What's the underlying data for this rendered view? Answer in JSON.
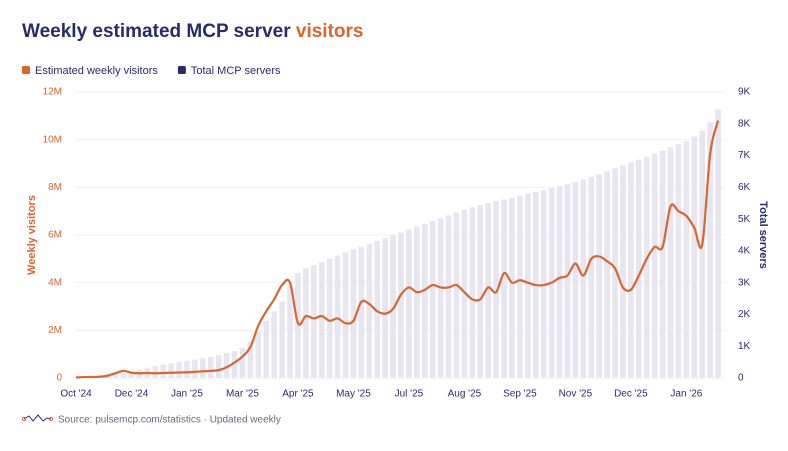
{
  "chart_data": {
    "type": "bar-line",
    "title": "Weekly estimated MCP server",
    "title_highlight": "visitors",
    "source": "Source: pulsemcp.com/statistics · Updated weekly",
    "ylabel": "Weekly visitors",
    "y2label": "Total servers",
    "categories": [
      "Oct '24",
      null,
      null,
      null,
      null,
      null,
      null,
      "Dec '24",
      null,
      null,
      null,
      null,
      null,
      null,
      "Jan '25",
      null,
      null,
      null,
      null,
      null,
      null,
      "Mar '25",
      null,
      null,
      null,
      null,
      null,
      null,
      "Apr '25",
      null,
      null,
      null,
      null,
      null,
      null,
      "May '25",
      null,
      null,
      null,
      null,
      null,
      null,
      "Jul '25",
      null,
      null,
      null,
      null,
      null,
      null,
      "Aug '25",
      null,
      null,
      null,
      null,
      null,
      null,
      "Sep '25",
      null,
      null,
      null,
      null,
      null,
      null,
      "Nov '25",
      null,
      null,
      null,
      null,
      null,
      null,
      "Dec '25",
      null,
      null,
      null,
      null,
      null,
      null,
      "Jan '26",
      null,
      null,
      null,
      null
    ],
    "series": [
      {
        "name": "Estimated weekly visitors",
        "type": "line",
        "color": "#d8662e",
        "values": [
          20000,
          40000,
          45000,
          50000,
          100000,
          200000,
          300000,
          220000,
          200000,
          210000,
          200000,
          210000,
          220000,
          230000,
          240000,
          260000,
          280000,
          300000,
          330000,
          450000,
          650000,
          900000,
          1300000,
          2200000,
          2800000,
          3300000,
          3900000,
          4000000,
          2300000,
          2600000,
          2500000,
          2600000,
          2400000,
          2500000,
          2300000,
          2400000,
          3200000,
          3100000,
          2800000,
          2700000,
          2900000,
          3500000,
          3800000,
          3600000,
          3700000,
          3900000,
          3800000,
          3800000,
          3900000,
          3600000,
          3300000,
          3300000,
          3800000,
          3600000,
          4400000,
          4000000,
          4100000,
          4000000,
          3900000,
          3900000,
          4000000,
          4200000,
          4300000,
          4800000,
          4300000,
          5000000,
          5100000,
          4900000,
          4600000,
          3800000,
          3700000,
          4300000,
          5000000,
          5500000,
          5500000,
          7200000,
          7000000,
          6800000,
          6300000,
          5600000,
          9400000,
          10800000
        ]
      },
      {
        "name": "Total MCP servers",
        "type": "bar",
        "axis": "y2",
        "color": "#2a2b6b",
        "bar_color": "#e6e5f0",
        "values": [
          30,
          50,
          70,
          90,
          110,
          130,
          160,
          200,
          260,
          320,
          380,
          420,
          460,
          500,
          540,
          580,
          620,
          670,
          720,
          780,
          850,
          950,
          1150,
          1450,
          1800,
          2100,
          2400,
          2900,
          3300,
          3450,
          3550,
          3650,
          3750,
          3850,
          3950,
          4050,
          4130,
          4220,
          4310,
          4400,
          4490,
          4580,
          4670,
          4760,
          4850,
          4940,
          5030,
          5120,
          5210,
          5300,
          5370,
          5440,
          5500,
          5560,
          5620,
          5680,
          5740,
          5800,
          5860,
          5920,
          5980,
          6040,
          6100,
          6170,
          6250,
          6330,
          6420,
          6510,
          6600,
          6690,
          6780,
          6870,
          6960,
          7060,
          7160,
          7260,
          7360,
          7460,
          7600,
          7780,
          8050,
          8450
        ]
      }
    ],
    "ylim": [
      0,
      12000000
    ],
    "yticks": [
      0,
      {
        "value": 2000000,
        "label": "2M"
      },
      {
        "value": 4000000,
        "label": "4M"
      },
      {
        "value": 6000000,
        "label": "6M"
      },
      {
        "value": 8000000,
        "label": "8M"
      },
      {
        "value": 10000000,
        "label": "10M"
      },
      {
        "value": 12000000,
        "label": "12M"
      }
    ],
    "y2lim": [
      0,
      9000
    ],
    "y2ticks": [
      0,
      {
        "value": 1000,
        "label": "1K"
      },
      {
        "value": 2000,
        "label": "2K"
      },
      {
        "value": 3000,
        "label": "3K"
      },
      {
        "value": 4000,
        "label": "4K"
      },
      {
        "value": 5000,
        "label": "5K"
      },
      {
        "value": 6000,
        "label": "6K"
      },
      {
        "value": 7000,
        "label": "7K"
      },
      {
        "value": 8000,
        "label": "8K"
      },
      {
        "value": 9000,
        "label": "9K"
      }
    ],
    "grid": true
  }
}
